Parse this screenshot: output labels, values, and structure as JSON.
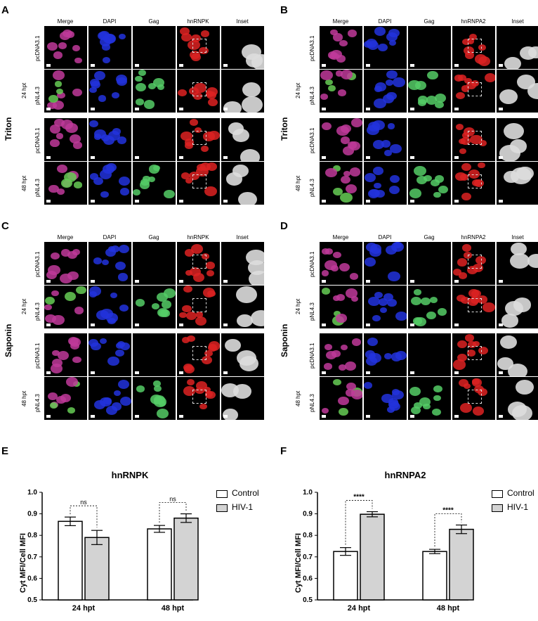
{
  "panels": {
    "A": {
      "letter": "A",
      "side": "Triton",
      "cols": [
        "Merge",
        "DAPI",
        "Gag",
        "hnRNPK",
        "Inset"
      ],
      "groups": [
        "24 hpt",
        "48 hpt"
      ],
      "rows": [
        "pcDNA3.1",
        "pNL4.3",
        "pcDNA3.1",
        "pNL4.3"
      ]
    },
    "B": {
      "letter": "B",
      "side": "Triton",
      "cols": [
        "Merge",
        "DAPI",
        "Gag",
        "hnRNPA2",
        "Inset"
      ],
      "groups": [
        "24 hpt",
        "48 hpt"
      ],
      "rows": [
        "pcDNA3.1",
        "pNL4.3",
        "pcDNA3.1",
        "pNL4.3"
      ]
    },
    "C": {
      "letter": "C",
      "side": "Saponin",
      "cols": [
        "Merge",
        "DAPI",
        "Gag",
        "hnRNPK",
        "Inset"
      ],
      "groups": [
        "24 hpt",
        "48 hpt"
      ],
      "rows": [
        "pcDNA3.1",
        "pNL4.3",
        "pcDNA3.1",
        "pNL4.3"
      ]
    },
    "D": {
      "letter": "D",
      "side": "Saponin",
      "cols": [
        "Merge",
        "DAPI",
        "Gag",
        "hnRNPA2",
        "Inset"
      ],
      "groups": [
        "24 hpt",
        "48 hpt"
      ],
      "rows": [
        "pcDNA3.1",
        "pNL4.3",
        "pcDNA3.1",
        "pNL4.3"
      ]
    }
  },
  "chart_data": [
    {
      "letter": "E",
      "type": "bar",
      "title": "hnRNPK",
      "ylabel": "Cyt  MFI/Cell MFI",
      "ylim": [
        0.5,
        1.0
      ],
      "yticks": [
        "0.5",
        "0.6",
        "0.7",
        "0.8",
        "0.9",
        "1.0"
      ],
      "categories": [
        "24 hpt",
        "48 hpt"
      ],
      "series": [
        {
          "name": "Control",
          "values": [
            0.865,
            0.83
          ],
          "errors": [
            0.02,
            0.016
          ],
          "color": "#ffffff"
        },
        {
          "name": "HIV-1",
          "values": [
            0.79,
            0.88
          ],
          "errors": [
            0.033,
            0.02
          ],
          "color": "#d3d3d3"
        }
      ],
      "annotations": [
        "ns",
        "ns"
      ],
      "legend": "top-right"
    },
    {
      "letter": "F",
      "type": "bar",
      "title": "hnRNPA2",
      "ylabel": "Cyt  MFI/Cell  MFI",
      "ylim": [
        0.5,
        1.0
      ],
      "yticks": [
        "0.5",
        "0.6",
        "0.7",
        "0.8",
        "0.9",
        "1.0"
      ],
      "categories": [
        "24 hpt",
        "48 hpt"
      ],
      "series": [
        {
          "name": "Control",
          "values": [
            0.725,
            0.725
          ],
          "errors": [
            0.018,
            0.01
          ],
          "color": "#ffffff"
        },
        {
          "name": "HIV-1",
          "values": [
            0.898,
            0.828
          ],
          "errors": [
            0.012,
            0.02
          ],
          "color": "#d3d3d3"
        }
      ],
      "annotations": [
        "****",
        "****"
      ],
      "legend": "top-right"
    }
  ]
}
